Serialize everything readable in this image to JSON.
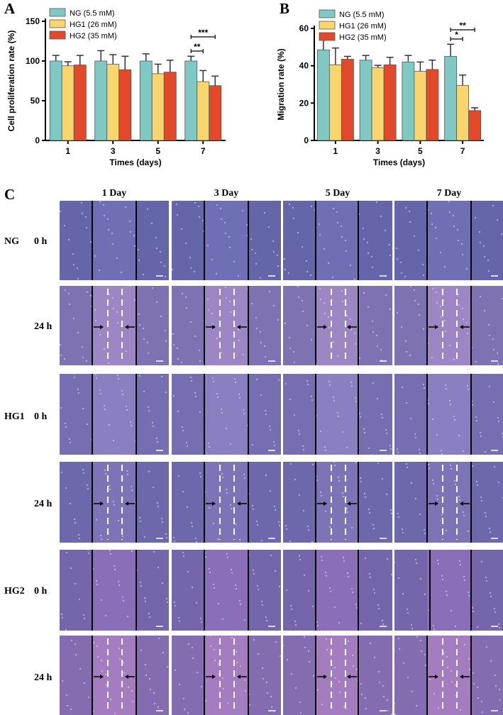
{
  "colors": {
    "ng": "#7fc8c4",
    "hg1": "#f9d56e",
    "hg2": "#e2492a"
  },
  "chart_data": [
    {
      "panel": "A",
      "type": "bar",
      "categories": [
        "1",
        "3",
        "5",
        "7"
      ],
      "xlabel": "Times (days)",
      "ylabel": "Cell proliferation rate (%)",
      "ylim": [
        0,
        150
      ],
      "yticks": [
        0,
        50,
        100,
        150
      ],
      "series": [
        {
          "name": "NG (5.5 mM)",
          "values": [
            100,
            100,
            100,
            100
          ],
          "errors": [
            7,
            13,
            9,
            6
          ]
        },
        {
          "name": "HG1 (26 mM)",
          "values": [
            94,
            96,
            84,
            74
          ],
          "errors": [
            5,
            12,
            12,
            14
          ]
        },
        {
          "name": "HG2 (35 mM)",
          "values": [
            95,
            89,
            86,
            69
          ],
          "errors": [
            12,
            17,
            15,
            12
          ]
        }
      ],
      "significance": [
        {
          "label": "**",
          "category": "7",
          "between": [
            "NG (5.5 mM)",
            "HG1 (26 mM)"
          ]
        },
        {
          "label": "***",
          "category": "7",
          "between": [
            "NG (5.5 mM)",
            "HG2 (35 mM)"
          ]
        }
      ],
      "legend": "top-left"
    },
    {
      "panel": "B",
      "type": "bar",
      "categories": [
        "1",
        "3",
        "5",
        "7"
      ],
      "xlabel": "Times (days)",
      "ylabel": "Migration rate (%)",
      "ylim": [
        0,
        60
      ],
      "yticks": [
        0,
        20,
        40,
        60
      ],
      "series": [
        {
          "name": "NG (5.5 mM)",
          "values": [
            48.5,
            43,
            42,
            45
          ],
          "errors": [
            7,
            2.5,
            3.5,
            6.5
          ]
        },
        {
          "name": "HG1 (26 mM)",
          "values": [
            40.5,
            39,
            37,
            29.5
          ],
          "errors": [
            9,
            1.2,
            5,
            5.5
          ]
        },
        {
          "name": "HG2 (35 mM)",
          "values": [
            43.5,
            40.5,
            38,
            16
          ],
          "errors": [
            1.5,
            4,
            5,
            1.5
          ]
        }
      ],
      "significance": [
        {
          "label": "*",
          "category": "7",
          "between": [
            "NG (5.5 mM)",
            "HG1 (26 mM)"
          ]
        },
        {
          "label": "**",
          "category": "7",
          "between": [
            "NG (5.5 mM)",
            "HG2 (35 mM)"
          ]
        }
      ],
      "legend": "top-left"
    }
  ],
  "panel_c": {
    "letter": "C",
    "days": [
      "1 Day",
      "3 Day",
      "5 Day",
      "7 Day"
    ],
    "rows": [
      {
        "group": "NG",
        "time": "0 h"
      },
      {
        "group": "",
        "time": "24 h"
      },
      {
        "group": "HG1",
        "time": "0 h"
      },
      {
        "group": "",
        "time": "24 h"
      },
      {
        "group": "HG2",
        "time": "0 h"
      },
      {
        "group": "",
        "time": "24 h"
      }
    ]
  }
}
